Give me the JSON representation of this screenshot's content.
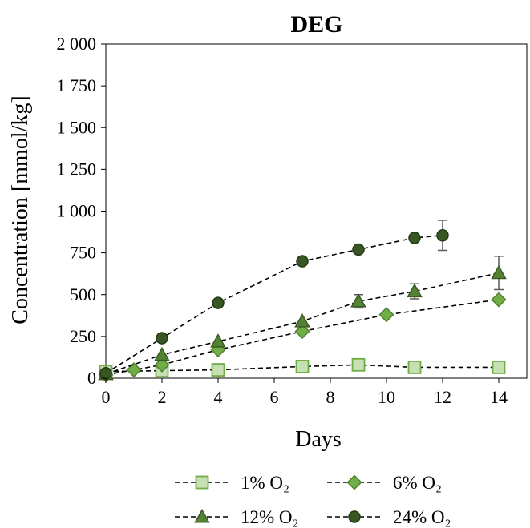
{
  "chart_data": {
    "type": "scatter",
    "title": "DEG",
    "xlabel": "Days",
    "ylabel": "Concentration [mmol/kg]",
    "xlim": [
      0,
      15
    ],
    "ylim": [
      0,
      2000
    ],
    "xticks": [
      "0",
      "2",
      "4",
      "6",
      "8",
      "10",
      "12",
      "14"
    ],
    "yticks": [
      "0",
      "250",
      "500",
      "750",
      "1 000",
      "1 250",
      "1 500",
      "1 750",
      "2 000"
    ],
    "grid": false,
    "legend_position": "bottom",
    "series": [
      {
        "name": "1% O₂",
        "marker": "square",
        "fill": "#c6e0b4",
        "stroke": "#70ad47",
        "line": "dashed",
        "points": [
          [
            0,
            40
          ],
          [
            2,
            45
          ],
          [
            4,
            50
          ],
          [
            7,
            70
          ],
          [
            9,
            80
          ],
          [
            11,
            65
          ],
          [
            14,
            65
          ]
        ]
      },
      {
        "name": "6% O₂",
        "marker": "diamond",
        "fill": "#70ad47",
        "stroke": "#548235",
        "line": "dashed",
        "points": [
          [
            0,
            20
          ],
          [
            1,
            50
          ],
          [
            2,
            80
          ],
          [
            4,
            170
          ],
          [
            7,
            280
          ],
          [
            10,
            380
          ],
          [
            14,
            470
          ]
        ]
      },
      {
        "name": "12% O₂",
        "marker": "triangle",
        "fill": "#548235",
        "stroke": "#3a5a23",
        "line": "dashed",
        "points": [
          [
            0,
            25
          ],
          [
            2,
            140
          ],
          [
            4,
            220
          ],
          [
            7,
            340
          ],
          [
            9,
            460
          ],
          [
            11,
            520
          ],
          [
            14,
            630
          ]
        ],
        "error": [
          0,
          0,
          0,
          0,
          40,
          45,
          100
        ]
      },
      {
        "name": "24% O₂",
        "marker": "circle",
        "fill": "#385723",
        "stroke": "#243a16",
        "line": "dashed",
        "points": [
          [
            0,
            30
          ],
          [
            2,
            240
          ],
          [
            4,
            450
          ],
          [
            7,
            700
          ],
          [
            9,
            770
          ],
          [
            11,
            840
          ],
          [
            12,
            855
          ]
        ],
        "error": [
          0,
          20,
          0,
          0,
          0,
          15,
          90
        ]
      }
    ]
  }
}
